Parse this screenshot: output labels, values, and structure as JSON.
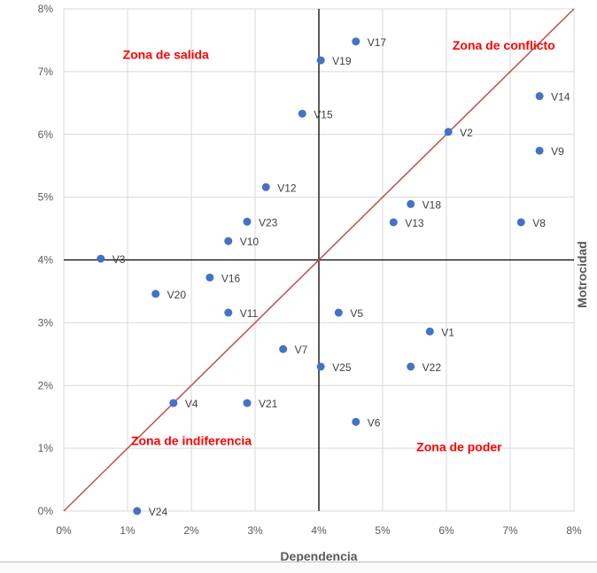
{
  "chart_data": {
    "type": "scatter",
    "title": "",
    "xlabel": "Dependencia",
    "ylabel": "Motrocidad",
    "xlim": [
      0,
      8
    ],
    "ylim": [
      0,
      8
    ],
    "x_ticks": [
      "0%",
      "1%",
      "2%",
      "3%",
      "4%",
      "5%",
      "6%",
      "7%",
      "8%"
    ],
    "y_ticks": [
      "0%",
      "1%",
      "2%",
      "3%",
      "4%",
      "5%",
      "6%",
      "7%",
      "8%"
    ],
    "grid": true,
    "point_color": "#4472c4",
    "diagonal_color": "#c0504d",
    "zone_color": "#ff0000",
    "divider_x": 4,
    "divider_y": 4,
    "zones": [
      {
        "label": "Zona de salida",
        "x": 1.6,
        "y": 7.2
      },
      {
        "label": "Zona de conflicto",
        "x": 6.9,
        "y": 7.35
      },
      {
        "label": "Zona de indiferencia",
        "x": 2.0,
        "y": 1.05
      },
      {
        "label": "Zona de poder",
        "x": 6.2,
        "y": 0.95
      }
    ],
    "points": [
      {
        "label": "V1",
        "x": 5.74,
        "y": 2.86
      },
      {
        "label": "V2",
        "x": 6.03,
        "y": 6.04
      },
      {
        "label": "V3",
        "x": 0.58,
        "y": 4.02
      },
      {
        "label": "V4",
        "x": 1.72,
        "y": 1.72
      },
      {
        "label": "V5",
        "x": 4.31,
        "y": 3.16
      },
      {
        "label": "V6",
        "x": 4.58,
        "y": 1.42
      },
      {
        "label": "V7",
        "x": 3.44,
        "y": 2.58
      },
      {
        "label": "V8",
        "x": 7.17,
        "y": 4.6
      },
      {
        "label": "V9",
        "x": 7.46,
        "y": 5.74
      },
      {
        "label": "V10",
        "x": 2.58,
        "y": 4.3
      },
      {
        "label": "V11",
        "x": 2.58,
        "y": 3.16
      },
      {
        "label": "V12",
        "x": 3.17,
        "y": 5.16
      },
      {
        "label": "V13",
        "x": 5.17,
        "y": 4.6
      },
      {
        "label": "V14",
        "x": 7.46,
        "y": 6.61
      },
      {
        "label": "V15",
        "x": 3.74,
        "y": 6.33
      },
      {
        "label": "V16",
        "x": 2.29,
        "y": 3.72
      },
      {
        "label": "V17",
        "x": 4.58,
        "y": 7.48
      },
      {
        "label": "V18",
        "x": 5.44,
        "y": 4.89
      },
      {
        "label": "V19",
        "x": 4.03,
        "y": 7.18
      },
      {
        "label": "V20",
        "x": 1.44,
        "y": 3.46
      },
      {
        "label": "V21",
        "x": 2.875,
        "y": 1.72
      },
      {
        "label": "V22",
        "x": 5.44,
        "y": 2.3
      },
      {
        "label": "V23",
        "x": 2.875,
        "y": 4.61
      },
      {
        "label": "V24",
        "x": 1.15,
        "y": 0.0
      },
      {
        "label": "V25",
        "x": 4.03,
        "y": 2.3
      }
    ]
  }
}
